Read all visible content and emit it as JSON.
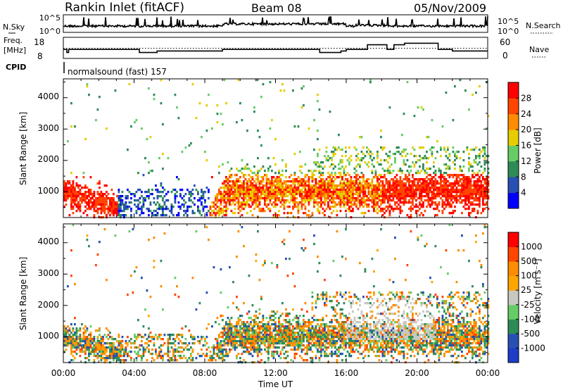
{
  "header": {
    "station": "Rankin Inlet (fitACF)",
    "beam": "Beam 08",
    "date": "05/Nov/2009"
  },
  "noise_panel": {
    "left_label": "N.Sky",
    "left_ticks": [
      "10^5",
      "10^0"
    ],
    "right_label": "N.Search",
    "right_ticks": [
      "10^5",
      "10^0"
    ]
  },
  "freq_panel": {
    "left_label_line1": "Freq.",
    "left_label_line2": "[MHz]",
    "left_ticks": [
      "18",
      "8"
    ],
    "right_label": "Nave",
    "right_ticks": [
      "60",
      "0"
    ]
  },
  "cpid": {
    "label": "CPID",
    "text": "normalsound (fast) 157"
  },
  "colors": {
    "power": [
      "#0000ff",
      "#2850b4",
      "#2e8b57",
      "#66cd66",
      "#e6cd00",
      "#ff8c00",
      "#ff4500",
      "#ff0000"
    ],
    "velocity": [
      "#ff0000",
      "#ff4500",
      "#ff8c00",
      "#ffa500",
      "#c8c8c0",
      "#66cd66",
      "#2e8b57",
      "#2850b4",
      "#1e3cc8"
    ],
    "ground_scatter": "#c8c8c0"
  },
  "chart_data": [
    {
      "type": "heatmap",
      "name": "power",
      "ylabel": "Slant Range [km]",
      "ylim": [
        180,
        4600
      ],
      "yticks": [
        "1000",
        "2000",
        "3000",
        "4000"
      ],
      "colorbar_label": "Power [dB]",
      "colorbar_ticks": [
        "4",
        "8",
        "12",
        "16",
        "20",
        "24",
        "28"
      ],
      "colorbar_range": [
        0,
        32
      ]
    },
    {
      "type": "heatmap",
      "name": "velocity",
      "ylabel": "Slant Range [km]",
      "ylim": [
        180,
        4600
      ],
      "yticks": [
        "1000",
        "2000",
        "3000",
        "4000"
      ],
      "colorbar_label": "Velocity [m s⁻¹]",
      "colorbar_ticks": [
        "1000",
        "500",
        "100",
        "25",
        "-25",
        "-100",
        "-500",
        "-1000"
      ]
    },
    {
      "type": "line",
      "name": "frequency",
      "x_hours": [
        0,
        0.2,
        0.3,
        3.5,
        4.3,
        5.3,
        9.0,
        10.0,
        11.0,
        14.0,
        14.5,
        15.7,
        16.0,
        16.8,
        17.2,
        17.8,
        18.3,
        18.7,
        19.3,
        21.2,
        22.0,
        24.0
      ],
      "values": [
        12,
        10,
        12,
        12,
        10,
        11,
        12,
        12,
        12,
        12,
        10,
        11,
        12,
        12,
        15,
        15,
        12,
        15,
        16,
        12,
        11,
        11
      ]
    },
    {
      "type": "line",
      "name": "nave",
      "y_reference": 18
    }
  ],
  "xaxis": {
    "label": "Time UT",
    "ticks": [
      "00:00",
      "04:00",
      "08:00",
      "12:00",
      "16:00",
      "20:00",
      "00:00"
    ]
  }
}
